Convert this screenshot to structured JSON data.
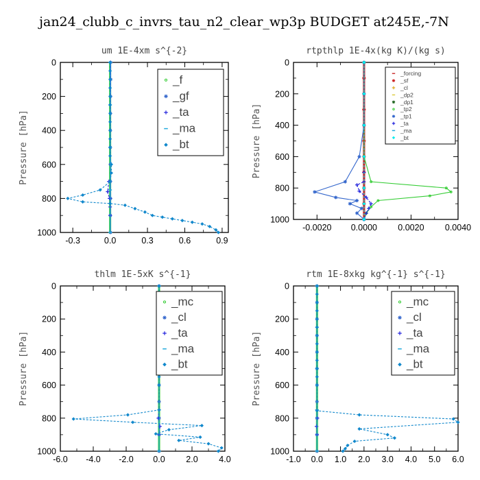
{
  "title": "jan24_clubb_c_invrs_tau_n2_clear_wp3p  BUDGET at245E,-7N",
  "chart_data": [
    {
      "type": "line",
      "title": "um  1E-4xm s^{-2}",
      "ylabel": "Pressure [hPa]",
      "xlim": [
        -0.4,
        0.95
      ],
      "ylim": [
        1000,
        0
      ],
      "xticks": [
        -0.3,
        0.0,
        0.3,
        0.6,
        0.9
      ],
      "xtick_labels": [
        "-0.3",
        "0.0",
        "0.3",
        "0.6",
        "0.9"
      ],
      "yticks": [
        0,
        200,
        400,
        600,
        800,
        1000
      ],
      "ytick_labels": [
        "0",
        "200",
        "400",
        "600",
        "800",
        "1000"
      ],
      "legend_position": "top-right",
      "legend_size": "large",
      "series": [
        {
          "name": "_f",
          "color": "#33cc33",
          "marker": "circle",
          "x": [
            0,
            0,
            0,
            0,
            0,
            0,
            0,
            0,
            0,
            0,
            0
          ],
          "y": [
            0,
            100,
            200,
            300,
            400,
            500,
            600,
            700,
            800,
            900,
            1000
          ]
        },
        {
          "name": "_gf",
          "color": "#3366cc",
          "marker": "star",
          "x": [
            0.005,
            0.005,
            0.004,
            0.003,
            0.002,
            0.002,
            0.002,
            0.003,
            0.004,
            0.002,
            0.003
          ],
          "y": [
            0,
            100,
            200,
            300,
            400,
            500,
            600,
            700,
            800,
            900,
            1000
          ]
        },
        {
          "name": "_ta",
          "color": "#2222dd",
          "marker": "plus",
          "x": [
            -0.01,
            -0.02,
            -0.005,
            0.0,
            0.0
          ],
          "y": [
            700,
            760,
            800,
            850,
            900
          ]
        },
        {
          "name": "_ma",
          "color": "#22aadd",
          "marker": "dash",
          "x": [
            0,
            0,
            0,
            0,
            0
          ],
          "y": [
            0,
            250,
            500,
            750,
            1000
          ]
        },
        {
          "name": "_bt",
          "color": "#1188cc",
          "marker": "diamond",
          "x": [
            0,
            0,
            0,
            0,
            0,
            0,
            0,
            0,
            0,
            0,
            0,
            0,
            0.01,
            0.01,
            0,
            -0.08,
            -0.22,
            -0.34,
            -0.22,
            0.0,
            0.12,
            0.2,
            0.28,
            0.34,
            0.42,
            0.5,
            0.58,
            0.66,
            0.74,
            0.8,
            0.85,
            0.87
          ],
          "y": [
            0,
            50,
            100,
            150,
            200,
            250,
            300,
            350,
            400,
            450,
            500,
            550,
            600,
            650,
            700,
            750,
            780,
            800,
            820,
            830,
            840,
            860,
            880,
            900,
            910,
            920,
            930,
            940,
            950,
            965,
            985,
            1000
          ]
        }
      ]
    },
    {
      "type": "line",
      "title": "rtpthlp  1E-4x(kg K)/(kg s)",
      "ylabel": "Pressure [hPa]",
      "xlim": [
        -0.003,
        0.004
      ],
      "ylim": [
        1000,
        0
      ],
      "xticks": [
        -0.002,
        0.0,
        0.002,
        0.004
      ],
      "xtick_labels": [
        "-0.0020",
        "0.0000",
        "0.0020",
        "0.0040"
      ],
      "yticks": [
        0,
        200,
        400,
        600,
        800,
        1000
      ],
      "ytick_labels": [
        "0",
        "200",
        "400",
        "600",
        "800",
        "1000"
      ],
      "legend_position": "top-right",
      "legend_size": "small",
      "series": [
        {
          "name": "_forcing",
          "color": "#cc3333",
          "marker": "dash",
          "x": [
            0,
            0,
            0,
            0,
            0,
            0,
            0,
            0,
            0,
            0,
            0
          ],
          "y": [
            0,
            100,
            200,
            300,
            400,
            500,
            600,
            700,
            800,
            900,
            1000
          ]
        },
        {
          "name": "_sf",
          "color": "#cc2222",
          "marker": "star",
          "x": [
            0,
            0,
            0,
            0,
            0,
            0,
            0,
            0,
            0,
            0,
            0
          ],
          "y": [
            0,
            100,
            200,
            300,
            400,
            500,
            600,
            700,
            800,
            900,
            1000
          ]
        },
        {
          "name": "_cl",
          "color": "#ddaa22",
          "marker": "plus",
          "x": [],
          "y": []
        },
        {
          "name": "_dp2",
          "color": "#ddcc44",
          "marker": "dash",
          "x": [],
          "y": []
        },
        {
          "name": "_dp1",
          "color": "#226622",
          "marker": "star",
          "x": [],
          "y": []
        },
        {
          "name": "_tp2",
          "color": "#33cc33",
          "marker": "circle",
          "x": [
            0,
            0,
            0,
            0,
            0.0003,
            0.0035,
            0.0037,
            0.0028,
            0.0006,
            0.0003,
            0.0001,
            0
          ],
          "y": [
            0,
            200,
            400,
            600,
            760,
            800,
            825,
            850,
            880,
            920,
            960,
            1000
          ]
        },
        {
          "name": "_tp1",
          "color": "#3366cc",
          "marker": "star",
          "x": [
            0,
            0,
            0,
            -0.0002,
            -0.0008,
            -0.0021,
            -0.0012,
            -0.0003,
            -0.0006,
            -0.0001,
            -0.0003,
            0
          ],
          "y": [
            0,
            200,
            400,
            600,
            760,
            825,
            860,
            880,
            900,
            930,
            960,
            1000
          ]
        },
        {
          "name": "_ta",
          "color": "#2222dd",
          "marker": "plus",
          "x": [
            0,
            0,
            -0.0003,
            -0.0002,
            0.0001,
            0.0003,
            0.0002,
            0.0001,
            0
          ],
          "y": [
            700,
            760,
            780,
            820,
            860,
            900,
            930,
            960,
            1000
          ]
        },
        {
          "name": "_ma",
          "color": "#22aadd",
          "marker": "dash",
          "x": [],
          "y": []
        },
        {
          "name": "_bt",
          "color": "#00eeee",
          "marker": "diamond",
          "x": [
            0,
            0,
            0,
            0,
            0,
            0,
            0
          ],
          "y": [
            0,
            200,
            400,
            600,
            800,
            900,
            1000
          ]
        }
      ]
    },
    {
      "type": "line",
      "title": "thlm  1E-5xK s^{-1}",
      "ylabel": "Pressure [hPa]",
      "xlim": [
        -6.0,
        4.0
      ],
      "ylim": [
        1000,
        0
      ],
      "xticks": [
        -6,
        -4,
        -2,
        0,
        2,
        4
      ],
      "xtick_labels": [
        "-6.0",
        "-4.0",
        "-2.0",
        "0.0",
        "2.0",
        "4.0"
      ],
      "yticks": [
        0,
        200,
        400,
        600,
        800,
        1000
      ],
      "ytick_labels": [
        "0",
        "200",
        "400",
        "600",
        "800",
        "1000"
      ],
      "legend_position": "top-right",
      "legend_size": "large",
      "series": [
        {
          "name": "_mc",
          "color": "#33cc33",
          "marker": "circle",
          "x": [
            0,
            0,
            0,
            0,
            0,
            0,
            0,
            0,
            0,
            0,
            0
          ],
          "y": [
            0,
            100,
            200,
            300,
            400,
            500,
            600,
            700,
            800,
            900,
            1000
          ]
        },
        {
          "name": "_cl",
          "color": "#3366cc",
          "marker": "star",
          "x": [
            0,
            0,
            0,
            0,
            0,
            0,
            0,
            0,
            0,
            0,
            0
          ],
          "y": [
            0,
            100,
            200,
            300,
            400,
            500,
            600,
            700,
            800,
            900,
            1000
          ]
        },
        {
          "name": "_ta",
          "color": "#2222dd",
          "marker": "plus",
          "x": [
            0,
            -0.05,
            0.05,
            0
          ],
          "y": [
            750,
            800,
            850,
            900
          ]
        },
        {
          "name": "_ma",
          "color": "#22aadd",
          "marker": "dash",
          "x": [
            0,
            0,
            0,
            0,
            0
          ],
          "y": [
            0,
            250,
            500,
            750,
            1000
          ]
        },
        {
          "name": "_bt",
          "color": "#1188cc",
          "marker": "diamond",
          "x": [
            0,
            0,
            0,
            0,
            0,
            0,
            0,
            0,
            0,
            0,
            0,
            0,
            0,
            0,
            -1.9,
            -5.2,
            -1.6,
            2.6,
            0.6,
            -0.2,
            2.5,
            1.2,
            3.0,
            3.8,
            3.6
          ],
          "y": [
            0,
            50,
            100,
            150,
            200,
            250,
            300,
            350,
            400,
            450,
            500,
            550,
            600,
            750,
            780,
            805,
            825,
            845,
            870,
            895,
            915,
            935,
            955,
            980,
            1000
          ]
        }
      ]
    },
    {
      "type": "line",
      "title": "rtm  1E-8xkg kg^{-1} s^{-1}",
      "ylabel": "Pressure [hPa]",
      "xlim": [
        -1.0,
        6.0
      ],
      "ylim": [
        1000,
        0
      ],
      "xticks": [
        -1,
        0,
        1,
        2,
        3,
        4,
        5,
        6
      ],
      "xtick_labels": [
        "-1.0",
        "0.0",
        "1.0",
        "2.0",
        "3.0",
        "4.0",
        "5.0",
        "6.0"
      ],
      "yticks": [
        0,
        200,
        400,
        600,
        800,
        1000
      ],
      "ytick_labels": [
        "0",
        "200",
        "400",
        "600",
        "800",
        "1000"
      ],
      "legend_position": "top-right",
      "legend_size": "large",
      "series": [
        {
          "name": "_mc",
          "color": "#33cc33",
          "marker": "circle",
          "x": [
            0,
            0,
            0,
            0,
            0,
            0,
            0,
            0,
            0,
            0,
            0
          ],
          "y": [
            0,
            100,
            200,
            300,
            400,
            500,
            600,
            700,
            800,
            900,
            1000
          ]
        },
        {
          "name": "_cl",
          "color": "#3366cc",
          "marker": "star",
          "x": [
            0,
            0,
            0,
            0,
            0,
            0,
            0,
            0,
            0,
            0,
            0
          ],
          "y": [
            0,
            100,
            200,
            300,
            400,
            500,
            600,
            700,
            800,
            900,
            1000
          ]
        },
        {
          "name": "_ta",
          "color": "#2222dd",
          "marker": "plus",
          "x": [
            0,
            0.02,
            -0.02,
            0
          ],
          "y": [
            750,
            800,
            850,
            900
          ]
        },
        {
          "name": "_ma",
          "color": "#22aadd",
          "marker": "dash",
          "x": [
            0,
            0,
            0,
            0,
            0
          ],
          "y": [
            0,
            250,
            500,
            750,
            1000
          ]
        },
        {
          "name": "_bt",
          "color": "#1188cc",
          "marker": "diamond",
          "x": [
            0,
            0,
            0,
            0,
            0,
            0,
            0,
            0,
            0,
            0,
            0,
            0,
            0,
            0,
            1.8,
            5.8,
            6.0,
            1.8,
            3.0,
            3.3,
            1.6,
            1.3,
            1.2,
            1.1
          ],
          "y": [
            0,
            50,
            100,
            150,
            200,
            250,
            300,
            350,
            400,
            450,
            500,
            550,
            600,
            755,
            780,
            805,
            825,
            865,
            900,
            920,
            940,
            965,
            985,
            1000
          ]
        }
      ]
    }
  ]
}
